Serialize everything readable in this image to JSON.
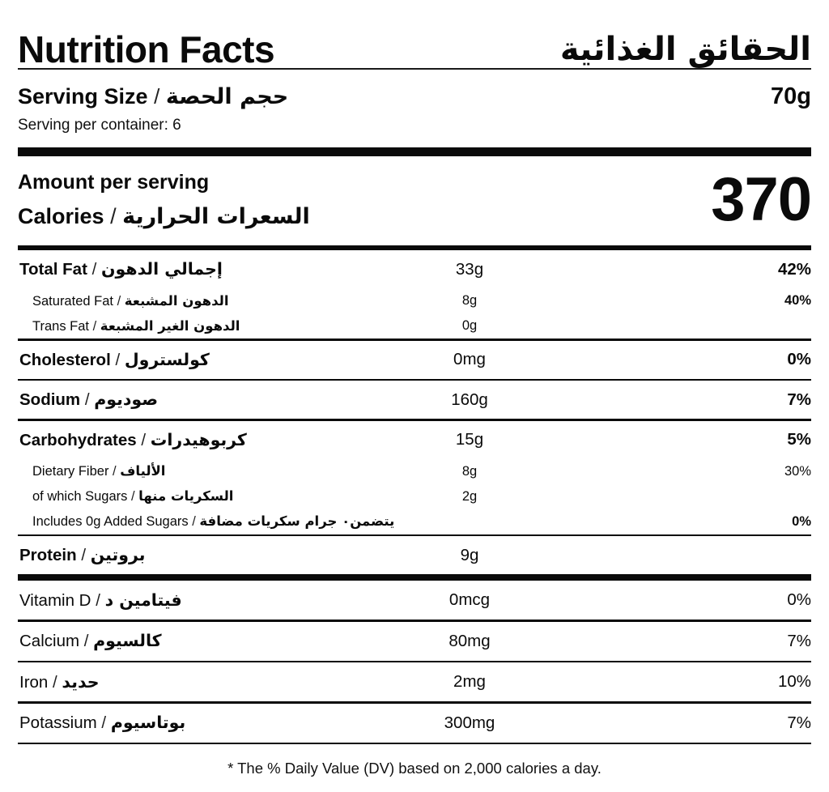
{
  "labels": {
    "separator": "/"
  },
  "header": {
    "title_en": "Nutrition Facts",
    "title_ar": "الحقائق الغذائية"
  },
  "serving": {
    "label_en": "Serving Size",
    "label_ar": "حجم الحصة",
    "size": "70g",
    "per_container": "Serving per container: 6"
  },
  "calories": {
    "line1": "Amount per serving",
    "label_en": "Calories",
    "label_ar": "السعرات الحرارية",
    "value": "370"
  },
  "rows": [
    {
      "type": "main",
      "en": "Total Fat",
      "ar": "إجمالي الدهون",
      "amount": "33g",
      "dv": "42%",
      "dv_bold": true,
      "divider": "none"
    },
    {
      "type": "sub",
      "en": "Saturated Fat",
      "ar": "الدهون المشبعة",
      "amount": "8g",
      "dv": "40%",
      "dv_bold": true,
      "divider": "none"
    },
    {
      "type": "sub",
      "en": "Trans Fat",
      "ar": "الدهون الغير المشبعة",
      "amount": "0g",
      "dv": "",
      "dv_bold": false,
      "divider": "thin"
    },
    {
      "type": "main",
      "en": "Cholesterol",
      "ar": "كولسترول",
      "amount": "0mg",
      "dv": "0%",
      "dv_bold": true,
      "divider": "thin"
    },
    {
      "type": "main",
      "en": "Sodium",
      "ar": "صوديوم",
      "amount": "160g",
      "dv": "7%",
      "dv_bold": true,
      "divider": "thin"
    },
    {
      "type": "main",
      "en": "Carbohydrates",
      "ar": "كربوهيدرات",
      "amount": "15g",
      "dv": "5%",
      "dv_bold": true,
      "divider": "none"
    },
    {
      "type": "sub",
      "en": "Dietary Fiber",
      "ar": "الألياف",
      "amount": "8g",
      "dv": "30%",
      "dv_bold": false,
      "divider": "none"
    },
    {
      "type": "sub",
      "en": "of which Sugars",
      "ar": "السكريات منها",
      "amount": "2g",
      "dv": "",
      "dv_bold": false,
      "divider": "none"
    },
    {
      "type": "sub",
      "en": "Includes 0g Added Sugars",
      "ar": "يتضمن٠ جرام سكريات مضافة",
      "amount": "",
      "dv": "0%",
      "dv_bold": true,
      "divider": "thin"
    },
    {
      "type": "main",
      "en": "Protein",
      "ar": "بروتين",
      "amount": "9g",
      "dv": "",
      "dv_bold": false,
      "divider": "thick2"
    },
    {
      "type": "vitamin",
      "en": "Vitamin D",
      "ar": "فيتامين د",
      "amount": "0mcg",
      "dv": "0%",
      "dv_bold": false,
      "divider": "thin"
    },
    {
      "type": "vitamin",
      "en": "Calcium",
      "ar": "كالسيوم",
      "amount": "80mg",
      "dv": "7%",
      "dv_bold": false,
      "divider": "thin"
    },
    {
      "type": "vitamin",
      "en": "Iron",
      "ar": "حديد",
      "amount": "2mg",
      "dv": "10%",
      "dv_bold": false,
      "divider": "thin"
    },
    {
      "type": "vitamin",
      "en": "Potassium",
      "ar": "بوتاسيوم",
      "amount": "300mg",
      "dv": "7%",
      "dv_bold": false,
      "divider": "thin"
    }
  ],
  "footer": {
    "note": "* The % Daily Value (DV) based on 2,000 calories a day."
  }
}
